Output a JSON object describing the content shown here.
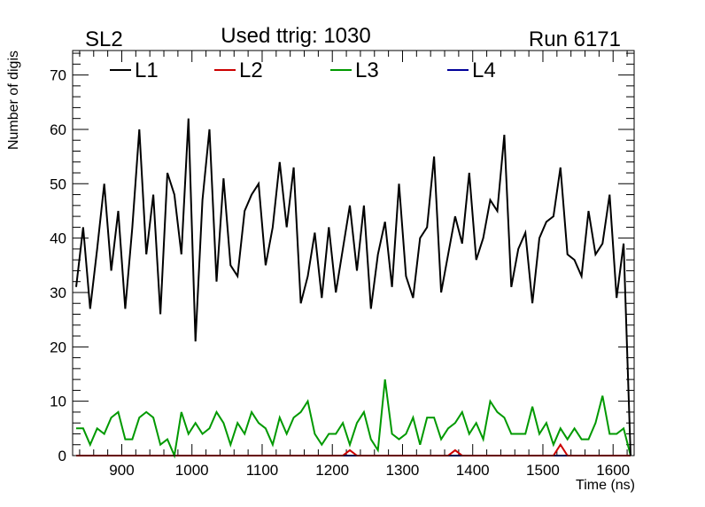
{
  "chart_data": {
    "type": "line",
    "title_left": "SL2",
    "title_center": "Used ttrig: 1030",
    "title_right": "Run 6171",
    "xlabel": "Time (ns)",
    "ylabel": "Number of digis",
    "xlim": [
      830,
      1630
    ],
    "ylim": [
      0,
      74.5
    ],
    "x_ticks": [
      900,
      1000,
      1100,
      1200,
      1300,
      1400,
      1500,
      1600
    ],
    "y_ticks": [
      0,
      10,
      20,
      30,
      40,
      50,
      60,
      70
    ],
    "grid": false,
    "legend_position": "top-left",
    "x_start": 835,
    "x_step": 10,
    "series": [
      {
        "name": "L1",
        "color": "#000000",
        "values": [
          31,
          42,
          27,
          38,
          50,
          34,
          45,
          27,
          42,
          60,
          37,
          48,
          26,
          52,
          48,
          37,
          62,
          21,
          47,
          60,
          32,
          51,
          35,
          33,
          45,
          48,
          50,
          35,
          42,
          54,
          42,
          53,
          28,
          33,
          41,
          29,
          42,
          30,
          38,
          46,
          34,
          46,
          27,
          37,
          43,
          31,
          50,
          33,
          29,
          40,
          42,
          55,
          30,
          37,
          44,
          39,
          52,
          36,
          40,
          47,
          45,
          59,
          31,
          38,
          41,
          28,
          40,
          43,
          44,
          53,
          37,
          36,
          33,
          45,
          37,
          39,
          48,
          29,
          39,
          0
        ]
      },
      {
        "name": "L2",
        "color": "#cc0000",
        "values": [
          0,
          0,
          0,
          0,
          0,
          0,
          0,
          0,
          0,
          0,
          0,
          0,
          0,
          0,
          0,
          0,
          0,
          0,
          0,
          0,
          0,
          0,
          0,
          0,
          0,
          0,
          0,
          0,
          0,
          0,
          0,
          0,
          0,
          0,
          0,
          0,
          0,
          0,
          0,
          1,
          0,
          0,
          0,
          0,
          0,
          0,
          0,
          0,
          0,
          0,
          0,
          0,
          0,
          0,
          1,
          0,
          0,
          0,
          0,
          0,
          0,
          0,
          0,
          0,
          0,
          0,
          0,
          0,
          0,
          2,
          0,
          0,
          0,
          0,
          0,
          0,
          0,
          0,
          0,
          0
        ]
      },
      {
        "name": "L3",
        "color": "#009900",
        "values": [
          5,
          5,
          2,
          5,
          4,
          7,
          8,
          3,
          3,
          7,
          8,
          7,
          2,
          3,
          0,
          8,
          4,
          6,
          4,
          5,
          8,
          6,
          2,
          6,
          4,
          8,
          6,
          5,
          2,
          7,
          4,
          7,
          8,
          10,
          4,
          2,
          4,
          4,
          6,
          2,
          6,
          8,
          3,
          1,
          14,
          4,
          3,
          4,
          7,
          2,
          7,
          7,
          3,
          5,
          6,
          8,
          4,
          6,
          3,
          10,
          8,
          7,
          4,
          4,
          4,
          9,
          4,
          6,
          2,
          5,
          3,
          5,
          3,
          3,
          6,
          11,
          4,
          4,
          5,
          0
        ]
      },
      {
        "name": "L4",
        "color": "#000099",
        "values": [
          0,
          0,
          0,
          0,
          0,
          0,
          0,
          0,
          0,
          0,
          0,
          0,
          0,
          0,
          0,
          0,
          0,
          0,
          0,
          0,
          0,
          0,
          0,
          0,
          0,
          0,
          0,
          0,
          0,
          0,
          0,
          0,
          0,
          0,
          0,
          0,
          0,
          0,
          0,
          0,
          0,
          0,
          0,
          0,
          0,
          0,
          0,
          0,
          0,
          0,
          0,
          0,
          0,
          0,
          0,
          0,
          0,
          0,
          0,
          0,
          0,
          0,
          0,
          0,
          0,
          0,
          0,
          0,
          0,
          0,
          0,
          0,
          0,
          0,
          0,
          0,
          0,
          0,
          0,
          0
        ]
      }
    ]
  }
}
